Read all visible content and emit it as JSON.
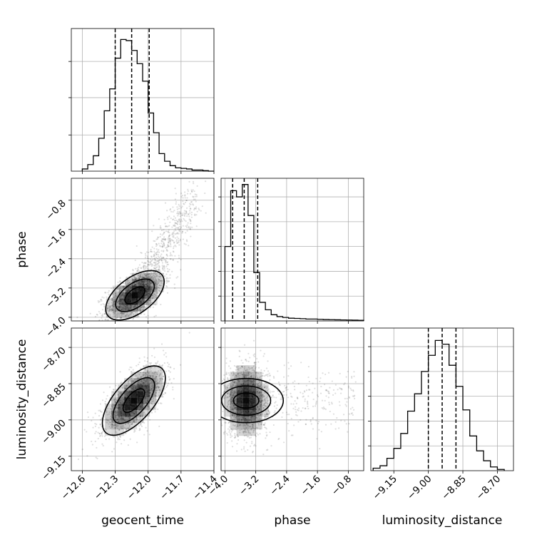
{
  "chart_data": [
    {
      "type": "histogram",
      "panel": "1D",
      "parameter": "geocent_time",
      "xlim": [
        -12.7,
        -11.4
      ],
      "ylim": [
        0,
        1.3
      ],
      "bins": [
        -12.6,
        -12.55,
        -12.5,
        -12.45,
        -12.4,
        -12.35,
        -12.3,
        -12.25,
        -12.2,
        -12.15,
        -12.1,
        -12.05,
        -12.0,
        -11.95,
        -11.9,
        -11.85,
        -11.8,
        -11.75,
        -11.7,
        -11.65,
        -11.6,
        -11.55,
        -11.5,
        -11.45,
        -11.4
      ],
      "counts": [
        0.02,
        0.06,
        0.14,
        0.3,
        0.55,
        0.75,
        1.03,
        1.2,
        1.19,
        1.1,
        0.98,
        0.82,
        0.53,
        0.35,
        0.16,
        0.09,
        0.05,
        0.03,
        0.025,
        0.02,
        0.01,
        0.01,
        0.005,
        0.0
      ],
      "quantiles": [
        -12.3,
        -12.15,
        -11.99
      ],
      "yticks": [
        0.33,
        0.67,
        1.0
      ]
    },
    {
      "type": "histogram",
      "panel": "1D",
      "parameter": "phase",
      "xlim": [
        -4.1,
        -0.4
      ],
      "ylim": [
        0,
        1.15
      ],
      "bins": [
        -4.0,
        -3.85,
        -3.7,
        -3.55,
        -3.4,
        -3.25,
        -3.1,
        -2.95,
        -2.8,
        -2.65,
        -2.5,
        -2.35,
        -2.2,
        -2.05,
        -1.9,
        -1.75,
        -1.6,
        -1.45,
        -1.3,
        -1.15,
        -1.0,
        -0.85,
        -0.7,
        -0.55,
        -0.4
      ],
      "counts": [
        0.6,
        1.05,
        1.0,
        1.1,
        0.85,
        0.39,
        0.15,
        0.09,
        0.05,
        0.035,
        0.028,
        0.022,
        0.02,
        0.018,
        0.015,
        0.015,
        0.013,
        0.011,
        0.01,
        0.009,
        0.008,
        0.007,
        0.006,
        0.005
      ],
      "quantiles": [
        -3.8,
        -3.5,
        -3.15
      ],
      "yticks": [
        0.2,
        0.4,
        0.6,
        0.8,
        1.0
      ]
    },
    {
      "type": "histogram",
      "panel": "1D",
      "parameter": "luminosity_distance",
      "xlim": [
        -9.25,
        -8.63
      ],
      "ylim": [
        0,
        1.15
      ],
      "bins": [
        -9.24,
        -9.21,
        -9.18,
        -9.15,
        -9.12,
        -9.09,
        -9.06,
        -9.03,
        -9.0,
        -8.97,
        -8.94,
        -8.91,
        -8.88,
        -8.85,
        -8.82,
        -8.79,
        -8.76,
        -8.73,
        -8.7,
        -8.67
      ],
      "counts": [
        0.02,
        0.04,
        0.1,
        0.18,
        0.3,
        0.48,
        0.62,
        0.8,
        0.93,
        1.05,
        1.02,
        0.85,
        0.68,
        0.49,
        0.28,
        0.16,
        0.08,
        0.03,
        0.01
      ],
      "quantiles": [
        -9.0,
        -8.94,
        -8.88
      ],
      "yticks": [
        0.2,
        0.4,
        0.6,
        0.8,
        1.0
      ]
    },
    {
      "type": "scatter-contour",
      "panel": "2D",
      "x": "geocent_time",
      "y": "phase",
      "xlim": [
        -12.7,
        -11.4
      ],
      "ylim": [
        -4.1,
        -0.2
      ],
      "x_mean": -12.12,
      "y_mean": -3.4,
      "x_std": 0.13,
      "y_std": 0.33,
      "correlation": 0.55,
      "tail": {
        "x_start": -12.1,
        "x_end": -11.58,
        "y_start": -3.4,
        "y_end": -0.65
      }
    },
    {
      "type": "scatter-contour",
      "panel": "2D",
      "x": "geocent_time",
      "y": "luminosity_distance",
      "xlim": [
        -12.7,
        -11.4
      ],
      "ylim": [
        -9.21,
        -8.62
      ],
      "x_mean": -12.13,
      "y_mean": -8.92,
      "x_std": 0.14,
      "y_std": 0.07,
      "correlation": 0.65
    },
    {
      "type": "scatter-contour",
      "panel": "2D",
      "x": "phase",
      "y": "luminosity_distance",
      "xlim": [
        -4.1,
        -0.4
      ],
      "ylim": [
        -9.21,
        -8.62
      ],
      "x_mean": -3.45,
      "y_mean": -8.92,
      "x_std": 0.28,
      "y_std": 0.075,
      "correlation": 0.0
    }
  ],
  "axes": {
    "geocent_time": {
      "label": "geocent_time",
      "ticks": [
        -12.6,
        -12.3,
        -12.0,
        -11.7,
        -11.4
      ],
      "tick_labels": [
        "−12.6",
        "−12.3",
        "−12.0",
        "−11.7",
        "−11.4"
      ]
    },
    "phase": {
      "label": "phase",
      "ticks": [
        -4.0,
        -3.2,
        -2.4,
        -1.6,
        -0.8
      ],
      "tick_labels": [
        "−4.0",
        "−3.2",
        "−2.4",
        "−1.6",
        "−0.8"
      ]
    },
    "luminosity_distance": {
      "label": "luminosity_distance",
      "ticks": [
        -9.15,
        -9.0,
        -8.85,
        -8.7
      ],
      "tick_labels": [
        "−9.15",
        "−9.00",
        "−8.85",
        "−8.70"
      ]
    }
  },
  "colors": {
    "line": "#000000",
    "grid": "#b0b0b0",
    "points": "#000000"
  }
}
